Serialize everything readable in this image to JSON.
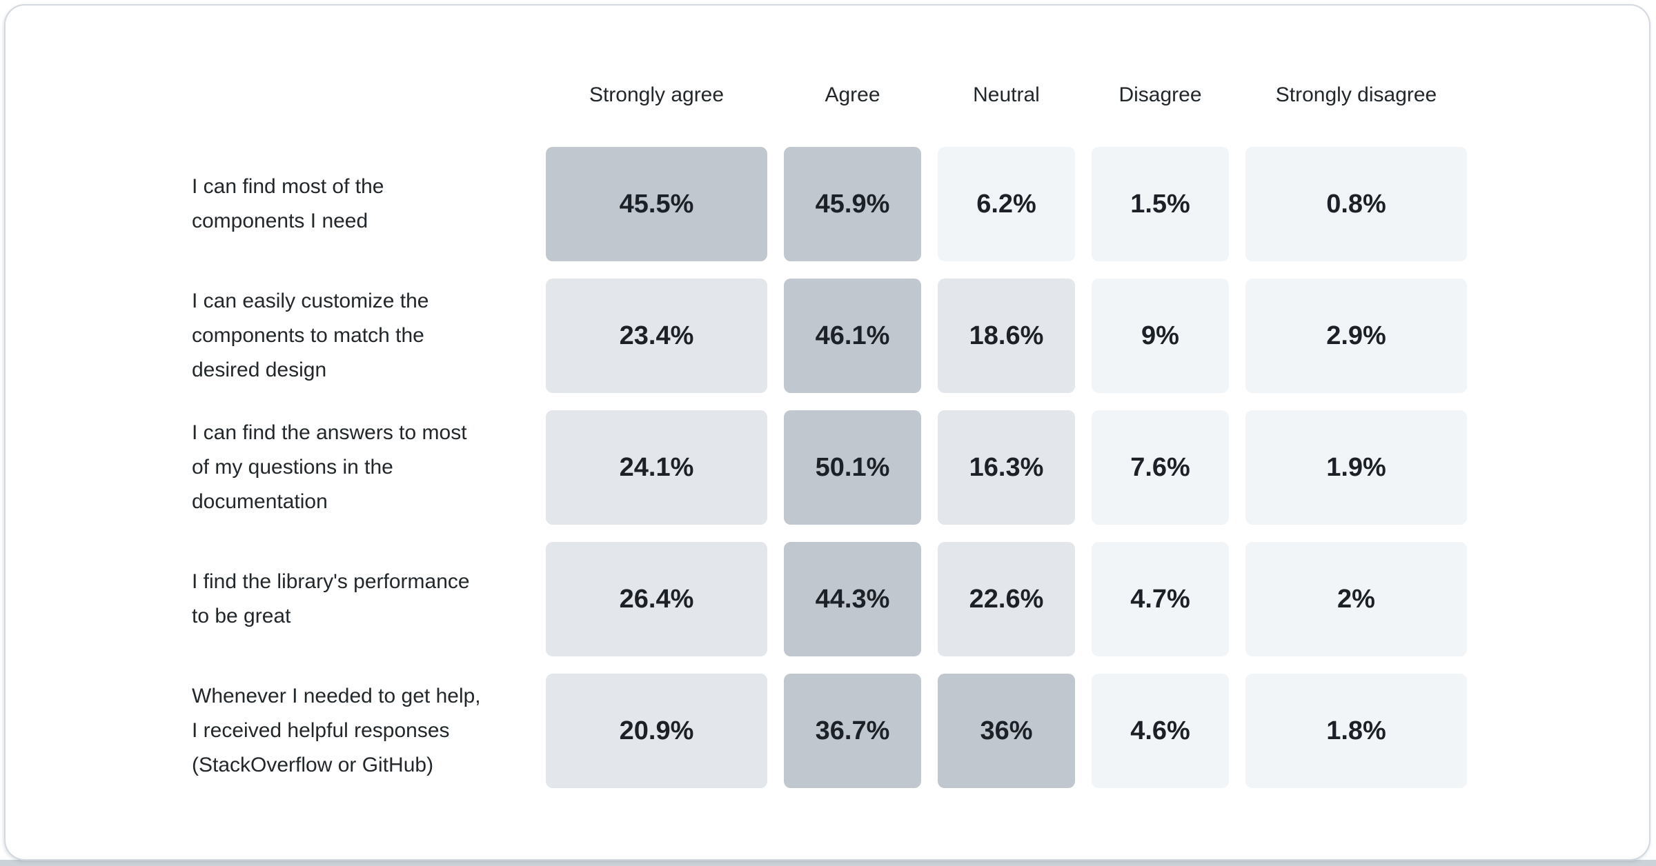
{
  "page": {
    "background": "#ffffff",
    "card_border_color": "#d3d9de",
    "bottom_strip_color": "#cbd2d8"
  },
  "chart_data": {
    "type": "heatmap",
    "title": "",
    "columns": [
      "Strongly agree",
      "Agree",
      "Neutral",
      "Disagree",
      "Strongly disagree"
    ],
    "rows": [
      {
        "label": "I can find most of the\ncomponents I need",
        "values": [
          45.5,
          45.9,
          6.2,
          1.5,
          0.8
        ],
        "display": [
          "45.5%",
          "45.9%",
          "6.2%",
          "1.5%",
          "0.8%"
        ]
      },
      {
        "label": "I can easily customize the\ncomponents to match the\ndesired design",
        "values": [
          23.4,
          46.1,
          18.6,
          9,
          2.9
        ],
        "display": [
          "23.4%",
          "46.1%",
          "18.6%",
          "9%",
          "2.9%"
        ]
      },
      {
        "label": "I can find the answers to most\nof my questions in the\ndocumentation",
        "values": [
          24.1,
          50.1,
          16.3,
          7.6,
          1.9
        ],
        "display": [
          "24.1%",
          "50.1%",
          "16.3%",
          "7.6%",
          "1.9%"
        ]
      },
      {
        "label": "I find the library's performance\nto be great",
        "values": [
          26.4,
          44.3,
          22.6,
          4.7,
          2
        ],
        "display": [
          "26.4%",
          "44.3%",
          "22.6%",
          "4.7%",
          "2%"
        ]
      },
      {
        "label": "Whenever I needed to get help,\nI received helpful responses\n(StackOverflow or GitHub)",
        "values": [
          20.9,
          36.7,
          36,
          4.6,
          1.8
        ],
        "display": [
          "20.9%",
          "36.7%",
          "36%",
          "4.6%",
          "1.8%"
        ]
      }
    ],
    "value_unit": "%",
    "cell_colors": {
      "high": "#c1c7cf",
      "mid": "#e3e6ea",
      "low": "#f2f5f8"
    },
    "color_thresholds": {
      "high": 30,
      "mid": 12
    },
    "grid": "off",
    "legend": "none"
  }
}
